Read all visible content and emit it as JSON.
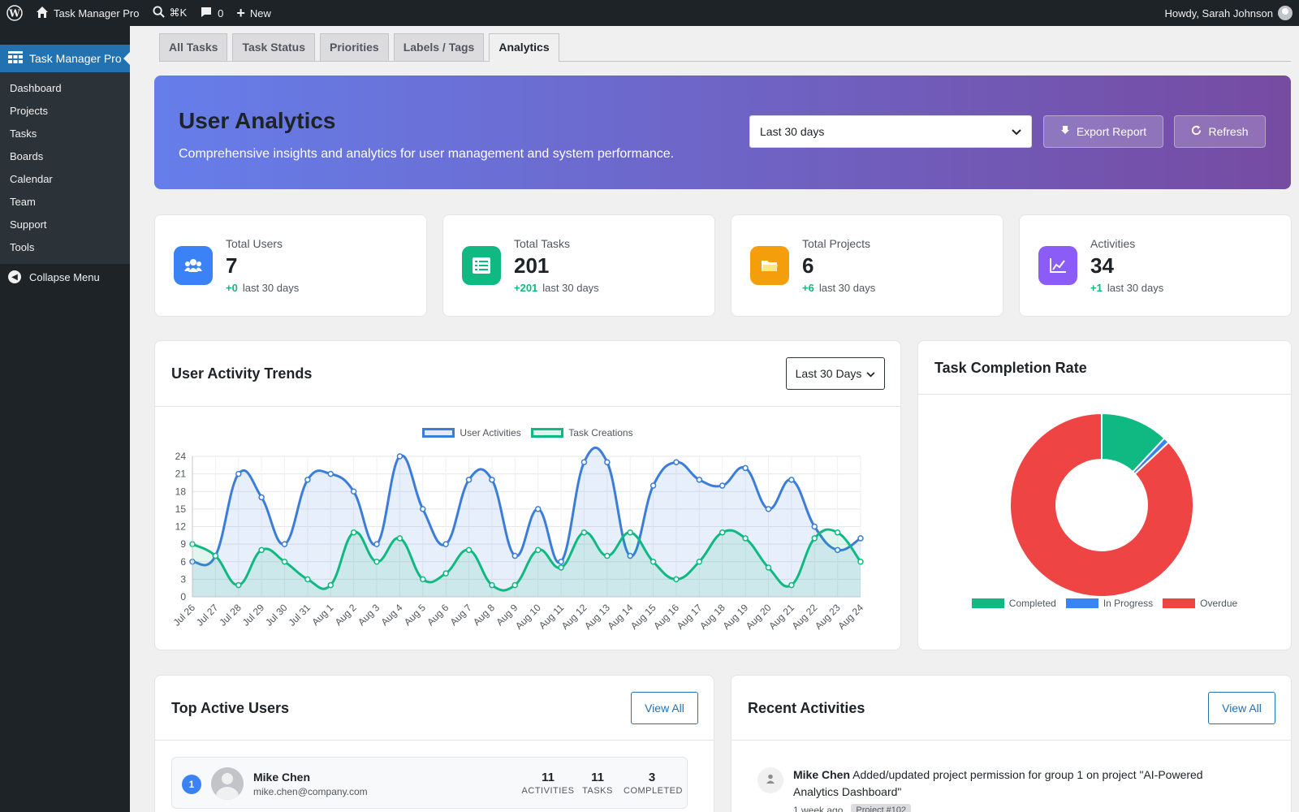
{
  "adminbar": {
    "site_name": "Task Manager Pro",
    "search_shortcut": "⌘K",
    "comments_count": "0",
    "new_label": "New",
    "greeting": "Howdy, Sarah Johnson"
  },
  "sidebar": {
    "current": "Task Manager Pro",
    "items": [
      "Dashboard",
      "Projects",
      "Tasks",
      "Boards",
      "Calendar",
      "Team",
      "Support",
      "Tools"
    ],
    "collapse_label": "Collapse Menu"
  },
  "tabs": [
    "All Tasks",
    "Task Status",
    "Priorities",
    "Labels / Tags",
    "Analytics"
  ],
  "hero": {
    "title": "User Analytics",
    "subtitle": "Comprehensive insights and analytics for user management and system performance.",
    "range_selected": "Last 30 days",
    "export_label": "Export Report",
    "refresh_label": "Refresh"
  },
  "stats": [
    {
      "label": "Total Users",
      "value": "7",
      "delta": "+0",
      "period": "last 30 days",
      "color": "#3b82f6"
    },
    {
      "label": "Total Tasks",
      "value": "201",
      "delta": "+201",
      "period": "last 30 days",
      "color": "#10b981"
    },
    {
      "label": "Total Projects",
      "value": "6",
      "delta": "+6",
      "period": "last 30 days",
      "color": "#f59e0b"
    },
    {
      "label": "Activities",
      "value": "34",
      "delta": "+1",
      "period": "last 30 days",
      "color": "#8b5cf6"
    }
  ],
  "trends": {
    "title": "User Activity Trends",
    "range_selected": "Last 30 Days"
  },
  "completion": {
    "title": "Task Completion Rate"
  },
  "top_users": {
    "title": "Top Active Users",
    "view_all": "View All",
    "users": [
      {
        "rank": "1",
        "name": "Mike Chen",
        "email": "mike.chen@company.com",
        "activities": "11",
        "tasks": "11",
        "completed": "3"
      }
    ],
    "labels": {
      "activities": "ACTIVITIES",
      "tasks": "TASKS",
      "completed": "COMPLETED"
    }
  },
  "recent": {
    "title": "Recent Activities",
    "view_all": "View All",
    "items": [
      {
        "user": "Mike Chen",
        "text": "Added/updated project permission for group 1 on project \"AI-Powered Analytics Dashboard\"",
        "time": "1 week ago",
        "tag": "Project #102"
      }
    ]
  },
  "chart_data": [
    {
      "type": "line",
      "x": [
        "Jul 26",
        "Jul 27",
        "Jul 28",
        "Jul 29",
        "Jul 30",
        "Jul 31",
        "Aug 1",
        "Aug 2",
        "Aug 3",
        "Aug 4",
        "Aug 5",
        "Aug 6",
        "Aug 7",
        "Aug 8",
        "Aug 9",
        "Aug 10",
        "Aug 11",
        "Aug 12",
        "Aug 13",
        "Aug 14",
        "Aug 15",
        "Aug 16",
        "Aug 17",
        "Aug 18",
        "Aug 19",
        "Aug 20",
        "Aug 21",
        "Aug 22",
        "Aug 23",
        "Aug 24"
      ],
      "series": [
        {
          "name": "User Activities",
          "color": "#3b7dd8",
          "values": [
            6,
            7,
            21,
            17,
            9,
            20,
            21,
            18,
            9,
            24,
            15,
            9,
            20,
            20,
            7,
            15,
            6,
            23,
            23,
            7,
            19,
            23,
            20,
            19,
            22,
            15,
            20,
            12,
            8,
            10
          ]
        },
        {
          "name": "Task Creations",
          "color": "#10b981",
          "values": [
            9,
            7,
            2,
            8,
            6,
            3,
            2,
            11,
            6,
            10,
            3,
            4,
            8,
            2,
            2,
            8,
            5,
            11,
            7,
            11,
            6,
            3,
            6,
            11,
            10,
            5,
            2,
            10,
            11,
            6
          ]
        }
      ],
      "ylim": [
        0,
        24
      ],
      "yticks": [
        0,
        3,
        6,
        9,
        12,
        15,
        18,
        21,
        24
      ],
      "legend": "top-center",
      "grid": true
    },
    {
      "type": "pie",
      "categories": [
        "Completed",
        "In Progress",
        "Overdue"
      ],
      "values": [
        12,
        1,
        87
      ],
      "colors": [
        "#10b981",
        "#3b82f6",
        "#ef4444"
      ],
      "legend": "bottom"
    }
  ]
}
